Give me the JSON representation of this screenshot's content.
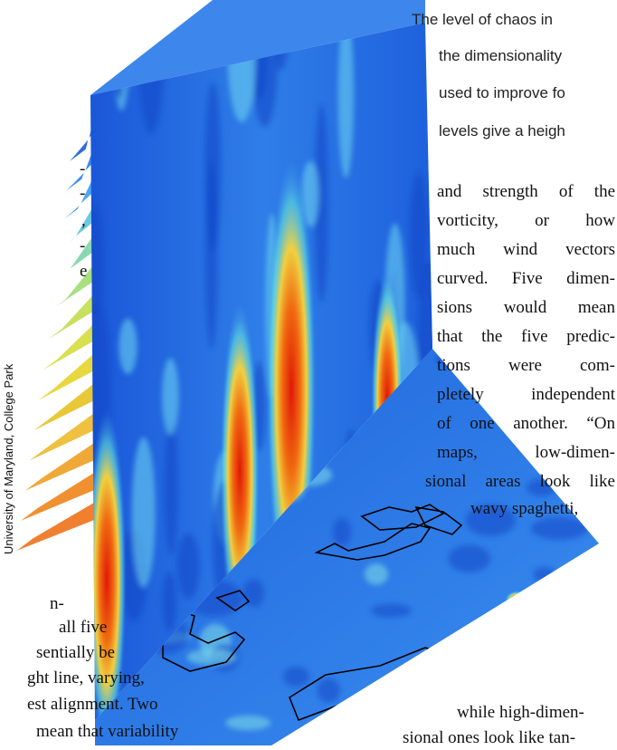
{
  "caption": {
    "lines": [
      "The level of chaos in",
      "the dimensionality",
      "used to improve fo",
      "levels give a heigh"
    ]
  },
  "body": {
    "right_column": [
      "and strength of the",
      "vorticity, or how",
      "much wind vectors",
      "curved. Five dimen-",
      "sions would mean",
      "that the five predic-",
      "tions were com-",
      "pletely independent",
      "of one another. “On",
      "maps, low-dimen-",
      "sional areas look like",
      "wavy spaghetti,"
    ],
    "left_fragments": [
      "-",
      "-",
      ",",
      "-",
      "e"
    ],
    "left_column": [
      "n-",
      "all five",
      "sentially be",
      "ght line, varying,",
      "est alignment. Two",
      "mean that variability"
    ],
    "bottom_lines": [
      "while high-dimen-",
      "sional ones look like tan-"
    ]
  },
  "credit": "University of Maryland, College Park"
}
